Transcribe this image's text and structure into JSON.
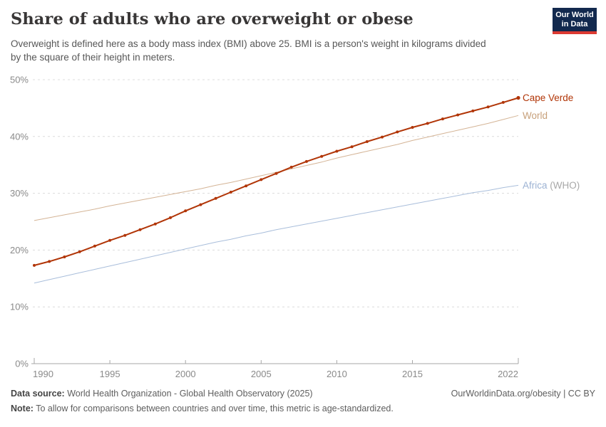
{
  "header": {
    "title": "Share of adults who are overweight or obese",
    "subtitle_line1": "Overweight is defined here as a body mass index (BMI) above 25. BMI is a person's weight in kilograms divided",
    "subtitle_line2": "by the square of their height in meters.",
    "logo": {
      "line1": "Our World",
      "line2": "in Data",
      "bg_color": "#12294e",
      "accent_color": "#dc3a32"
    }
  },
  "chart_data": {
    "type": "line",
    "title": "Share of adults who are overweight or obese",
    "xlabel": "",
    "ylabel": "",
    "xlim": [
      1990,
      2022
    ],
    "ylim": [
      0,
      50
    ],
    "grid": "horizontal-dashed",
    "legend_position": "right-edge-labels",
    "x_ticks": [
      1990,
      1995,
      2000,
      2005,
      2010,
      2015,
      2022
    ],
    "y_ticks": [
      {
        "value": 0,
        "label": "0%"
      },
      {
        "value": 10,
        "label": "10%"
      },
      {
        "value": 20,
        "label": "20%"
      },
      {
        "value": 30,
        "label": "30%"
      },
      {
        "value": 40,
        "label": "40%"
      },
      {
        "value": 50,
        "label": "50%"
      }
    ],
    "x": [
      1990,
      1991,
      1992,
      1993,
      1994,
      1995,
      1996,
      1997,
      1998,
      1999,
      2000,
      2001,
      2002,
      2003,
      2004,
      2005,
      2006,
      2007,
      2008,
      2009,
      2010,
      2011,
      2012,
      2013,
      2014,
      2015,
      2016,
      2017,
      2018,
      2019,
      2020,
      2021,
      2022
    ],
    "series": [
      {
        "id": "africa-who",
        "name": "Africa (WHO)",
        "label": "Africa",
        "label_suffix": " (WHO)",
        "color": "#a9bedb",
        "label_color": "#9cb2d3",
        "suffix_color": "#a8a8a8",
        "markers": false,
        "values": [
          14.2,
          14.8,
          15.4,
          16.0,
          16.6,
          17.2,
          17.8,
          18.4,
          19.0,
          19.6,
          20.2,
          20.8,
          21.4,
          21.9,
          22.5,
          23.0,
          23.6,
          24.1,
          24.6,
          25.1,
          25.6,
          26.1,
          26.6,
          27.1,
          27.6,
          28.1,
          28.6,
          29.1,
          29.6,
          30.1,
          30.5,
          31.0,
          31.4
        ]
      },
      {
        "id": "world",
        "name": "World",
        "label": "World",
        "label_suffix": "",
        "color": "#d4b496",
        "label_color": "#c7a07a",
        "suffix_color": "#a8a8a8",
        "markers": false,
        "values": [
          25.2,
          25.7,
          26.2,
          26.7,
          27.2,
          27.8,
          28.3,
          28.8,
          29.3,
          29.8,
          30.3,
          30.8,
          31.4,
          31.9,
          32.5,
          33.1,
          33.7,
          34.3,
          34.9,
          35.5,
          36.2,
          36.8,
          37.4,
          38.0,
          38.6,
          39.3,
          39.9,
          40.5,
          41.1,
          41.7,
          42.3,
          43.0,
          43.7
        ]
      },
      {
        "id": "cape-verde",
        "name": "Cape Verde",
        "label": "Cape Verde",
        "label_suffix": "",
        "color": "#b13507",
        "label_color": "#b13507",
        "suffix_color": "#a8a8a8",
        "markers": true,
        "values": [
          17.3,
          18.0,
          18.8,
          19.7,
          20.7,
          21.7,
          22.6,
          23.6,
          24.6,
          25.7,
          26.9,
          28.0,
          29.1,
          30.2,
          31.3,
          32.4,
          33.5,
          34.6,
          35.6,
          36.5,
          37.4,
          38.2,
          39.1,
          39.9,
          40.8,
          41.6,
          42.3,
          43.1,
          43.8,
          44.5,
          45.2,
          46.0,
          46.8
        ]
      }
    ]
  },
  "footer": {
    "datasource_label": "Data source:",
    "datasource_text": "World Health Organization - Global Health Observatory (2025)",
    "rights": "OurWorldinData.org/obesity | CC BY",
    "note_label": "Note:",
    "note_text": "To allow for comparisons between countries and over time, this metric is age-standardized."
  }
}
